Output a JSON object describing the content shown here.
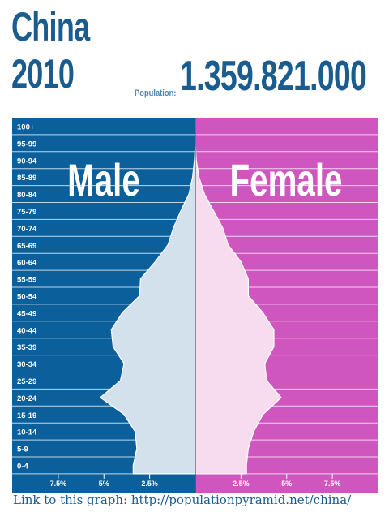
{
  "header": {
    "country": "China",
    "year": "2010",
    "population_label": "Population:",
    "population_value": "1.359.821.000"
  },
  "footer": {
    "link_text": "Link to this graph: http://populationpyramid.net/china/"
  },
  "colors": {
    "male_background": "#0b5f9b",
    "female_background": "#cf55bf",
    "male_fill": "#d2e1ec",
    "female_fill": "#f7dcf0",
    "title_color": "#1a5c8d"
  },
  "chart_data": {
    "type": "area",
    "orientation": "horizontal-pyramid",
    "side_labels": {
      "male": "Male",
      "female": "Female"
    },
    "age_groups": [
      "100+",
      "95-99",
      "90-94",
      "85-89",
      "80-84",
      "75-79",
      "70-74",
      "65-69",
      "60-64",
      "55-59",
      "50-54",
      "45-49",
      "40-44",
      "35-39",
      "30-34",
      "25-29",
      "20-24",
      "15-19",
      "10-14",
      "5-9",
      "0-4"
    ],
    "male_percent": [
      0.0,
      0.0,
      0.05,
      0.15,
      0.35,
      0.8,
      1.2,
      1.5,
      2.2,
      3.0,
      3.05,
      4.0,
      4.6,
      4.5,
      3.9,
      4.1,
      5.2,
      3.9,
      3.3,
      3.2,
      3.4
    ],
    "female_percent": [
      0.0,
      0.0,
      0.05,
      0.2,
      0.5,
      1.0,
      1.5,
      1.8,
      2.5,
      2.9,
      2.9,
      3.7,
      4.3,
      4.3,
      3.8,
      3.9,
      4.7,
      3.7,
      3.2,
      2.9,
      2.8
    ],
    "x_ticks": [
      "7.5%",
      "5%",
      "2.5%",
      "2.5%",
      "5%",
      "7.5%"
    ],
    "x_tick_values": [
      -7.5,
      -5,
      -2.5,
      2.5,
      5,
      7.5
    ],
    "xlim": [
      -10,
      10
    ],
    "xlabel": "",
    "ylabel": "",
    "grid": true
  }
}
